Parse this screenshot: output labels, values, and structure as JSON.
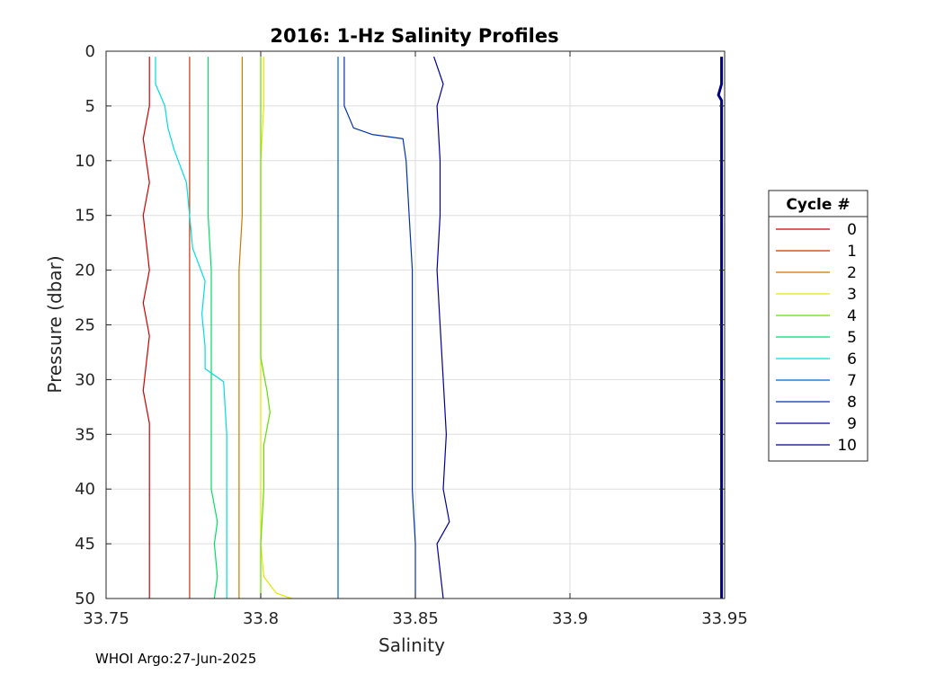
{
  "chart_data": {
    "type": "line",
    "title": "2016: 1-Hz Salinity Profiles",
    "xlabel": "Salinity",
    "ylabel": "Pressure (dbar)",
    "xlim": [
      33.75,
      33.95
    ],
    "ylim": [
      0,
      50
    ],
    "y_reversed": true,
    "grid": true,
    "x_ticks": [
      {
        "value": 33.75,
        "label": "33.75"
      },
      {
        "value": 33.8,
        "label": "33.8"
      },
      {
        "value": 33.85,
        "label": "33.85"
      },
      {
        "value": 33.9,
        "label": "33.9"
      },
      {
        "value": 33.95,
        "label": "33.95"
      }
    ],
    "y_ticks": [
      {
        "value": 0,
        "label": "0"
      },
      {
        "value": 5,
        "label": "5"
      },
      {
        "value": 10,
        "label": "10"
      },
      {
        "value": 15,
        "label": "15"
      },
      {
        "value": 20,
        "label": "20"
      },
      {
        "value": 25,
        "label": "25"
      },
      {
        "value": 30,
        "label": "30"
      },
      {
        "value": 35,
        "label": "35"
      },
      {
        "value": 40,
        "label": "40"
      },
      {
        "value": 45,
        "label": "45"
      },
      {
        "value": 50,
        "label": "50"
      }
    ],
    "legend": {
      "title": "Cycle #",
      "placement": "right",
      "entries": [
        "0",
        "1",
        "2",
        "3",
        "4",
        "5",
        "6",
        "7",
        "8",
        "9",
        "10"
      ]
    },
    "series": [
      {
        "name": "0",
        "color": "#cc0000",
        "points": [
          [
            33.764,
            0.5
          ],
          [
            33.764,
            5
          ],
          [
            33.762,
            8
          ],
          [
            33.764,
            12
          ],
          [
            33.762,
            15
          ],
          [
            33.764,
            20
          ],
          [
            33.762,
            23
          ],
          [
            33.764,
            26
          ],
          [
            33.762,
            31
          ],
          [
            33.764,
            34
          ],
          [
            33.764,
            40
          ],
          [
            33.764,
            45
          ],
          [
            33.764,
            50
          ]
        ]
      },
      {
        "name": "1",
        "color": "#cc3300",
        "points": [
          [
            33.777,
            0.5
          ],
          [
            33.777,
            5
          ],
          [
            33.777,
            10
          ],
          [
            33.777,
            15
          ],
          [
            33.777,
            20
          ],
          [
            33.777,
            25
          ],
          [
            33.777,
            30
          ],
          [
            33.777,
            35
          ],
          [
            33.777,
            40
          ],
          [
            33.777,
            45
          ],
          [
            33.777,
            50
          ]
        ]
      },
      {
        "name": "2",
        "color": "#cc7700",
        "points": [
          [
            33.794,
            0.5
          ],
          [
            33.794,
            5
          ],
          [
            33.794,
            10
          ],
          [
            33.794,
            15
          ],
          [
            33.793,
            20
          ],
          [
            33.793,
            25
          ],
          [
            33.793,
            30
          ],
          [
            33.793,
            35
          ],
          [
            33.793,
            40
          ],
          [
            33.793,
            45
          ],
          [
            33.793,
            50
          ]
        ]
      },
      {
        "name": "3",
        "color": "#e6e600",
        "points": [
          [
            33.801,
            0.5
          ],
          [
            33.801,
            5
          ],
          [
            33.8,
            10
          ],
          [
            33.8,
            15
          ],
          [
            33.8,
            20
          ],
          [
            33.8,
            25
          ],
          [
            33.8,
            30
          ],
          [
            33.8,
            35
          ],
          [
            33.8,
            40
          ],
          [
            33.8,
            45
          ],
          [
            33.801,
            48
          ],
          [
            33.805,
            49.5
          ],
          [
            33.81,
            50
          ]
        ]
      },
      {
        "name": "4",
        "color": "#66dd00",
        "points": [
          [
            33.8,
            0.5
          ],
          [
            33.8,
            5
          ],
          [
            33.8,
            10
          ],
          [
            33.8,
            15
          ],
          [
            33.8,
            20
          ],
          [
            33.8,
            25
          ],
          [
            33.8,
            28
          ],
          [
            33.802,
            31
          ],
          [
            33.803,
            33
          ],
          [
            33.801,
            36
          ],
          [
            33.801,
            40
          ],
          [
            33.8,
            45
          ],
          [
            33.8,
            50
          ]
        ]
      },
      {
        "name": "5",
        "color": "#00dd66",
        "points": [
          [
            33.783,
            0.5
          ],
          [
            33.783,
            5
          ],
          [
            33.783,
            10
          ],
          [
            33.783,
            15
          ],
          [
            33.784,
            20
          ],
          [
            33.784,
            25
          ],
          [
            33.784,
            30
          ],
          [
            33.784,
            35
          ],
          [
            33.784,
            40
          ],
          [
            33.786,
            43
          ],
          [
            33.785,
            45
          ],
          [
            33.786,
            48
          ],
          [
            33.785,
            50
          ]
        ]
      },
      {
        "name": "6",
        "color": "#00dddd",
        "points": [
          [
            33.766,
            0.5
          ],
          [
            33.766,
            3
          ],
          [
            33.769,
            5
          ],
          [
            33.77,
            7
          ],
          [
            33.772,
            9
          ],
          [
            33.776,
            12
          ],
          [
            33.777,
            15
          ],
          [
            33.778,
            18
          ],
          [
            33.782,
            21
          ],
          [
            33.781,
            24
          ],
          [
            33.782,
            27
          ],
          [
            33.782,
            29
          ],
          [
            33.788,
            30.2
          ],
          [
            33.789,
            35
          ],
          [
            33.789,
            40
          ],
          [
            33.789,
            45
          ],
          [
            33.789,
            50
          ]
        ]
      },
      {
        "name": "7",
        "color": "#0066cc",
        "points": [
          [
            33.825,
            0.5
          ],
          [
            33.825,
            5
          ],
          [
            33.825,
            10
          ],
          [
            33.825,
            15
          ],
          [
            33.825,
            20
          ],
          [
            33.825,
            25
          ],
          [
            33.825,
            30
          ],
          [
            33.825,
            35
          ],
          [
            33.825,
            40
          ],
          [
            33.825,
            45
          ],
          [
            33.825,
            50
          ]
        ]
      },
      {
        "name": "8",
        "color": "#0033aa",
        "points": [
          [
            33.827,
            0.5
          ],
          [
            33.827,
            5
          ],
          [
            33.83,
            7
          ],
          [
            33.836,
            7.6
          ],
          [
            33.846,
            8
          ],
          [
            33.847,
            10
          ],
          [
            33.848,
            15
          ],
          [
            33.849,
            20
          ],
          [
            33.849,
            25
          ],
          [
            33.849,
            30
          ],
          [
            33.849,
            35
          ],
          [
            33.849,
            40
          ],
          [
            33.85,
            45
          ],
          [
            33.85,
            50
          ]
        ]
      },
      {
        "name": "9",
        "color": "#000099",
        "points": [
          [
            33.856,
            0.5
          ],
          [
            33.859,
            3
          ],
          [
            33.857,
            5
          ],
          [
            33.858,
            10
          ],
          [
            33.858,
            15
          ],
          [
            33.857,
            20
          ],
          [
            33.858,
            25
          ],
          [
            33.859,
            30
          ],
          [
            33.86,
            35
          ],
          [
            33.859,
            40
          ],
          [
            33.861,
            43
          ],
          [
            33.857,
            45
          ],
          [
            33.859,
            50
          ]
        ]
      },
      {
        "name": "10",
        "color": "#000080",
        "points": [
          [
            33.949,
            0.5
          ],
          [
            33.949,
            3
          ],
          [
            33.948,
            4
          ],
          [
            33.949,
            4.5
          ],
          [
            33.949,
            10
          ],
          [
            33.949,
            15
          ],
          [
            33.949,
            20
          ],
          [
            33.949,
            25
          ],
          [
            33.949,
            30
          ],
          [
            33.949,
            35
          ],
          [
            33.949,
            40
          ],
          [
            33.949,
            45
          ],
          [
            33.949,
            50
          ]
        ]
      }
    ]
  },
  "footer": "WHOI Argo:27-Jun-2025"
}
